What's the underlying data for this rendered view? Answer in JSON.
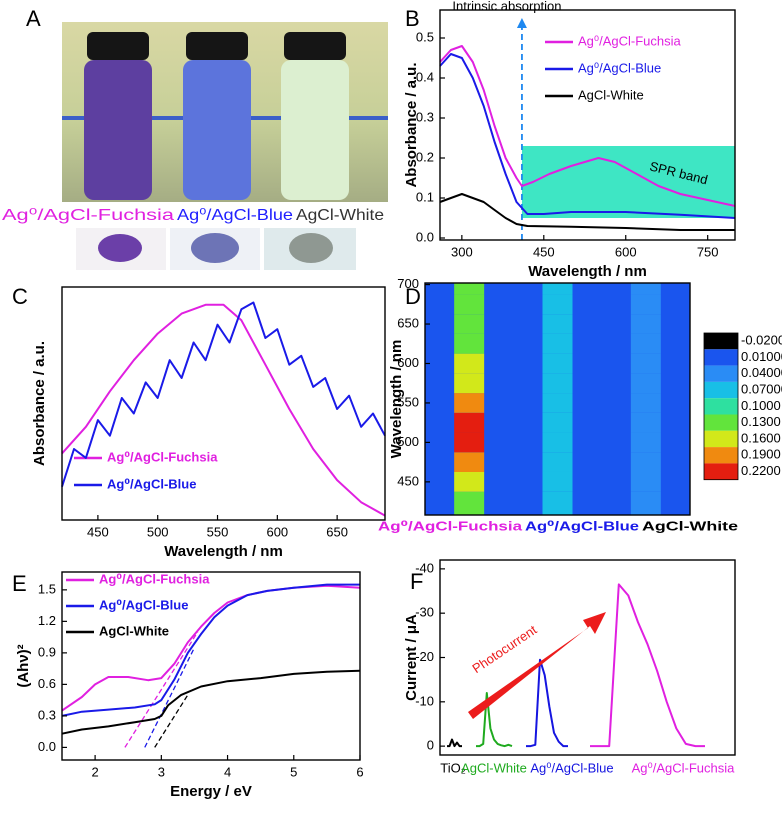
{
  "photo": {
    "label": "A",
    "captions": [
      "Ag⁰/AgCl-Fuchsia",
      "Ag⁰/AgCl-Blue",
      "AgCl-White"
    ]
  },
  "chart_data": [
    {
      "type": "line",
      "label": "B",
      "xlabel": "Wavelength / nm",
      "ylabel": "Absorbance / a.u.",
      "xlim": [
        260,
        800
      ],
      "ylim": [
        -0.005,
        0.57
      ],
      "xticks": [
        300,
        450,
        600,
        750
      ],
      "yticks": [
        {
          "value": 0,
          "label": "0.0"
        },
        0.1,
        0.2,
        0.3,
        0.4,
        0.5
      ],
      "legend": "upper right",
      "band": {
        "xlim": [
          410,
          800
        ],
        "ylim": [
          0.05,
          0.23
        ],
        "color": "#3ee6c4",
        "label": "SPR band"
      },
      "vline": {
        "x": 410,
        "color": "#1e88f0",
        "label": "Intrinsic absorption"
      },
      "series": [
        {
          "name": "Ag⁰/AgCl-Fuchsia",
          "color": "#e020e0",
          "x": [
            260,
            280,
            300,
            320,
            340,
            360,
            380,
            400,
            410,
            430,
            460,
            500,
            550,
            580,
            620,
            660,
            700,
            750,
            800
          ],
          "values": [
            0.44,
            0.47,
            0.48,
            0.44,
            0.37,
            0.28,
            0.2,
            0.15,
            0.13,
            0.14,
            0.16,
            0.18,
            0.2,
            0.19,
            0.16,
            0.13,
            0.11,
            0.095,
            0.08
          ]
        },
        {
          "name": "Ag⁰/AgCl-Blue",
          "color": "#1a1ae8",
          "x": [
            260,
            280,
            300,
            320,
            340,
            360,
            380,
            400,
            420,
            450,
            500,
            550,
            600,
            700,
            800
          ],
          "values": [
            0.43,
            0.46,
            0.45,
            0.4,
            0.33,
            0.24,
            0.16,
            0.09,
            0.06,
            0.06,
            0.065,
            0.065,
            0.065,
            0.058,
            0.05
          ]
        },
        {
          "name": "AgCl-White",
          "color": "#000000",
          "x": [
            260,
            280,
            300,
            320,
            340,
            360,
            380,
            400,
            420,
            500,
            600,
            700,
            800
          ],
          "values": [
            0.09,
            0.1,
            0.11,
            0.1,
            0.09,
            0.07,
            0.05,
            0.035,
            0.03,
            0.028,
            0.025,
            0.02,
            0.02
          ]
        }
      ]
    },
    {
      "type": "line",
      "label": "C",
      "xlabel": "Wavelength / nm",
      "ylabel": "Absorbance / a.u.",
      "xlim": [
        420,
        690
      ],
      "ylim": [
        0,
        1.05
      ],
      "xticks": [
        450,
        500,
        550,
        600,
        650
      ],
      "legend": "lower center",
      "series": [
        {
          "name": "Ag⁰/AgCl-Fuchsia",
          "color": "#e020e0",
          "x": [
            420,
            440,
            460,
            480,
            500,
            520,
            540,
            555,
            570,
            590,
            610,
            630,
            650,
            670,
            690
          ],
          "values": [
            0.3,
            0.42,
            0.58,
            0.72,
            0.84,
            0.93,
            0.97,
            0.97,
            0.9,
            0.7,
            0.5,
            0.32,
            0.18,
            0.08,
            0.02
          ]
        },
        {
          "name": "Ag⁰/AgCl-Blue",
          "color": "#1a1ae8",
          "x": [
            420,
            430,
            440,
            450,
            460,
            470,
            480,
            490,
            500,
            510,
            520,
            530,
            540,
            550,
            560,
            570,
            580,
            590,
            600,
            610,
            620,
            630,
            640,
            650,
            660,
            670,
            680,
            690
          ],
          "values": [
            0.15,
            0.32,
            0.28,
            0.45,
            0.38,
            0.55,
            0.48,
            0.62,
            0.55,
            0.72,
            0.64,
            0.8,
            0.72,
            0.88,
            0.8,
            0.95,
            0.98,
            0.82,
            0.86,
            0.7,
            0.74,
            0.6,
            0.64,
            0.5,
            0.56,
            0.42,
            0.48,
            0.38
          ]
        }
      ]
    },
    {
      "type": "heatmap",
      "label": "D",
      "ylabel": "Wavelength / nm",
      "ylim": [
        408,
        702
      ],
      "yticks": [
        450,
        500,
        550,
        600,
        650,
        700
      ],
      "categories": [
        "Ag⁰/AgCl-Fuchsia",
        "Ag⁰/AgCl-Blue",
        "AgCl-White"
      ],
      "category_colors": [
        "#e020e0",
        "#1a1ae8",
        "#000000"
      ],
      "y": [
        425,
        450,
        475,
        500,
        525,
        550,
        575,
        600,
        625,
        650,
        675,
        700
      ],
      "z": [
        [
          0.13,
          0.16,
          0.19,
          0.22,
          0.22,
          0.19,
          0.16,
          0.16,
          0.13,
          0.13,
          0.13,
          0.13
        ],
        [
          0.08,
          0.08,
          0.08,
          0.08,
          0.08,
          0.08,
          0.08,
          0.08,
          0.08,
          0.08,
          0.08,
          0.08
        ],
        [
          0.04,
          0.04,
          0.04,
          0.04,
          0.04,
          0.04,
          0.04,
          0.04,
          0.04,
          0.04,
          0.04,
          0.04
        ]
      ],
      "colorbar": [
        {
          "value": -0.02,
          "label": "-0.02000"
        },
        {
          "value": 0.01,
          "label": "0.01000"
        },
        {
          "value": 0.04,
          "label": "0.04000"
        },
        {
          "value": 0.07,
          "label": "0.07000"
        },
        {
          "value": 0.1,
          "label": "0.1000"
        },
        {
          "value": 0.13,
          "label": "0.1300"
        },
        {
          "value": 0.16,
          "label": "0.1600"
        },
        {
          "value": 0.19,
          "label": "0.1900"
        },
        {
          "value": 0.22,
          "label": "0.2200"
        }
      ],
      "colors": [
        "#000000",
        "#1a55ee",
        "#2a8cf5",
        "#18bfe6",
        "#2ee0a0",
        "#62e43c",
        "#d2e81a",
        "#f08a10",
        "#e41e10"
      ]
    },
    {
      "type": "line",
      "label": "E",
      "xlabel": "Energy / eV",
      "ylabel": "(Ahν)²",
      "xlim": [
        1.5,
        6
      ],
      "ylim": [
        -0.12,
        1.67
      ],
      "xticks": [
        2,
        3,
        4,
        5,
        6
      ],
      "yticks": [
        {
          "value": 0,
          "label": "0.0"
        },
        0.3,
        0.6,
        0.9,
        1.2,
        1.5
      ],
      "legend": "upper left",
      "series": [
        {
          "name": "Ag⁰/AgCl-Fuchsia",
          "color": "#e020e0",
          "x": [
            1.5,
            1.8,
            2.0,
            2.2,
            2.5,
            2.8,
            3.0,
            3.2,
            3.4,
            3.6,
            3.8,
            4.0,
            4.3,
            4.6,
            5.0,
            5.5,
            6.0
          ],
          "values": [
            0.35,
            0.48,
            0.6,
            0.67,
            0.67,
            0.64,
            0.66,
            0.8,
            1.0,
            1.15,
            1.28,
            1.38,
            1.45,
            1.49,
            1.52,
            1.54,
            1.52
          ],
          "tangent": {
            "x": [
              2.45,
              3.55
            ],
            "y": [
              0,
              1.1
            ]
          }
        },
        {
          "name": "Ag⁰/AgCl-Blue",
          "color": "#1a1ae8",
          "x": [
            1.5,
            1.8,
            2.2,
            2.6,
            2.9,
            3.0,
            3.2,
            3.4,
            3.6,
            3.8,
            4.0,
            4.3,
            4.6,
            5.0,
            5.5,
            6.0
          ],
          "values": [
            0.3,
            0.34,
            0.36,
            0.38,
            0.41,
            0.45,
            0.65,
            0.9,
            1.08,
            1.24,
            1.35,
            1.45,
            1.49,
            1.52,
            1.55,
            1.55
          ],
          "tangent": {
            "x": [
              2.75,
              3.5
            ],
            "y": [
              0,
              0.95
            ]
          }
        },
        {
          "name": "AgCl-White",
          "color": "#000000",
          "x": [
            1.5,
            1.8,
            2.2,
            2.6,
            2.9,
            3.0,
            3.1,
            3.3,
            3.6,
            4.0,
            4.5,
            5.0,
            5.5,
            6.0
          ],
          "values": [
            0.13,
            0.17,
            0.2,
            0.24,
            0.27,
            0.3,
            0.4,
            0.5,
            0.58,
            0.63,
            0.66,
            0.7,
            0.72,
            0.73
          ],
          "tangent": {
            "x": [
              2.9,
              3.4
            ],
            "y": [
              0,
              0.5
            ]
          }
        }
      ]
    },
    {
      "type": "line",
      "label": "F",
      "ylabel": "Current / μA",
      "annotation": "Photocurrent",
      "ylim": [
        2,
        -42
      ],
      "yticks": [
        0,
        -10,
        -20,
        -30,
        -40
      ],
      "legend": "bottom",
      "series": [
        {
          "name": "TiO₂",
          "color": "#000000",
          "values": [
            0,
            0,
            -1.5,
            0,
            -0.8,
            0,
            0
          ]
        },
        {
          "name": "AgCl-White",
          "color": "#1faa1f",
          "values": [
            0,
            0,
            -0.5,
            -12,
            -4,
            -1.5,
            -0.5,
            -0.2,
            0,
            -0.3,
            0
          ]
        },
        {
          "name": "Ag⁰/AgCl-Blue",
          "color": "#1515e0",
          "values": [
            0,
            0,
            -0.3,
            -19.5,
            -16,
            -9,
            -3,
            -1,
            0,
            0
          ]
        },
        {
          "name": "Ag⁰/AgCl-Fuchsia",
          "color": "#e020e0",
          "values": [
            0,
            0,
            0,
            -36.5,
            -34,
            -28,
            -23,
            -17,
            -10,
            -4,
            -0.5,
            0,
            0
          ]
        }
      ]
    }
  ]
}
